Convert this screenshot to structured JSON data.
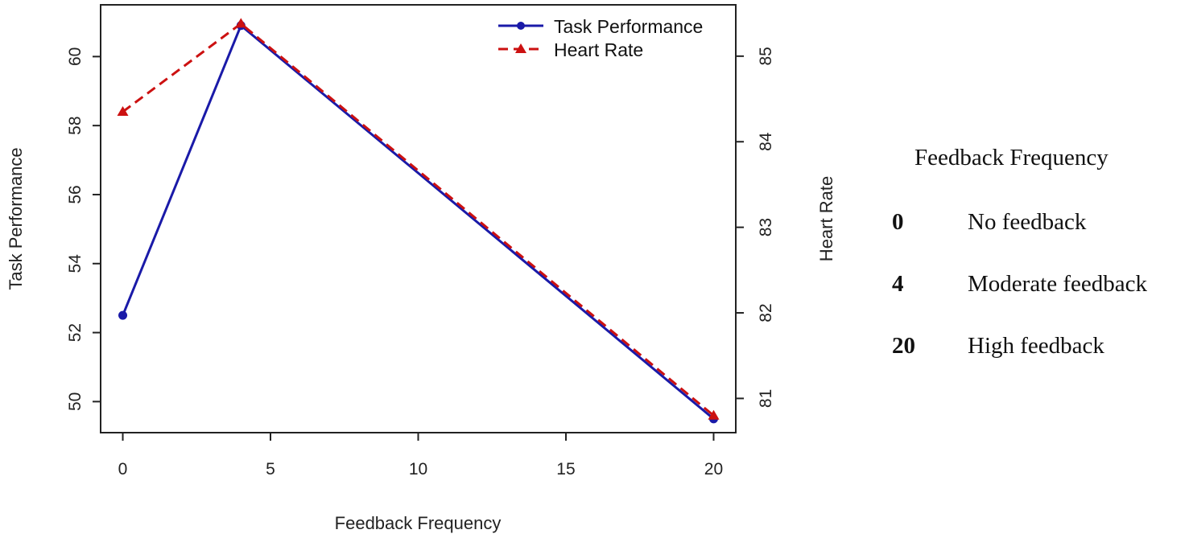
{
  "chart_data": {
    "type": "line",
    "title": "",
    "xlabel": "Feedback Frequency",
    "ylabel_left": "Task Performance",
    "ylabel_right": "Heart Rate",
    "x_ticks": [
      0,
      5,
      10,
      15,
      20
    ],
    "xlim": [
      -0.75,
      20.75
    ],
    "y_left_ticks": [
      50,
      52,
      54,
      56,
      58,
      60
    ],
    "y_left_lim": [
      49.1,
      61.5
    ],
    "y_right_ticks": [
      81,
      82,
      83,
      84,
      85
    ],
    "y_right_lim": [
      80.6,
      85.6
    ],
    "legend_position": "top-right",
    "grid": false,
    "series": [
      {
        "name": "Task Performance",
        "axis": "left",
        "color": "#1a1aa8",
        "line_style": "solid",
        "marker": "circle",
        "x": [
          0,
          4,
          20
        ],
        "y": [
          52.5,
          60.9,
          49.5
        ]
      },
      {
        "name": "Heart Rate",
        "axis": "right",
        "color": "#cc1111",
        "line_style": "dashed",
        "marker": "triangle",
        "x": [
          0,
          4,
          20
        ],
        "y": [
          84.35,
          85.38,
          80.8
        ]
      }
    ]
  },
  "side_table": {
    "title": "Feedback Frequency",
    "rows": [
      {
        "code": "0",
        "desc": "No feedback"
      },
      {
        "code": "4",
        "desc": "Moderate feedback"
      },
      {
        "code": "20",
        "desc": "High feedback"
      }
    ]
  }
}
